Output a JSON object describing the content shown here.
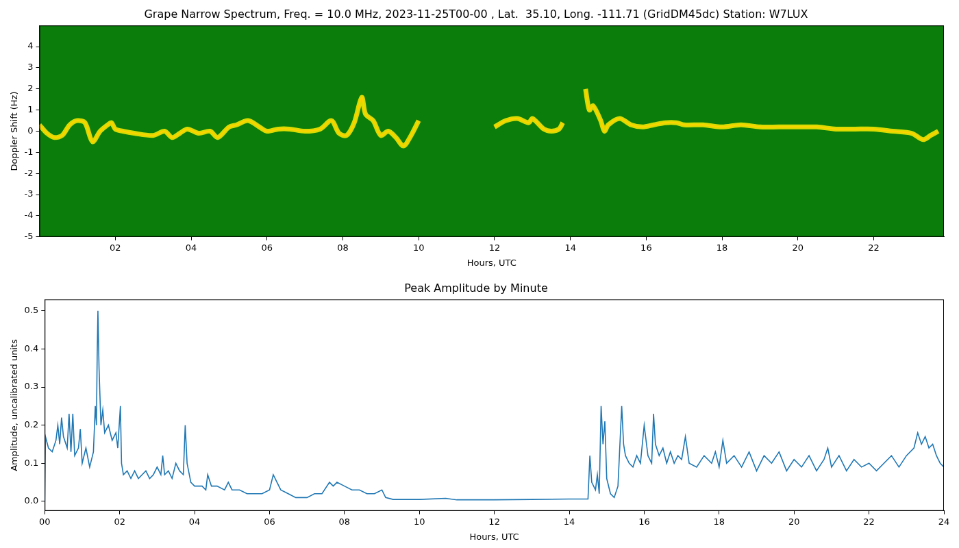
{
  "chart_data": [
    {
      "type": "line",
      "title": "Grape Narrow Spectrum, Freq. = 10.0 MHz, 2023-11-25T00-00 , Lat.  35.10, Long. -111.71 (GridDM45dc) Station: W7LUX",
      "xlabel": "Hours, UTC",
      "ylabel": "Doppler Shift (Hz)",
      "x": [
        0,
        0.2,
        0.4,
        0.6,
        0.8,
        1.0,
        1.2,
        1.4,
        1.6,
        1.8,
        1.9,
        2.0,
        2.2,
        2.5,
        3.0,
        3.3,
        3.5,
        3.7,
        3.9,
        4.2,
        4.5,
        4.7,
        5.0,
        5.2,
        5.5,
        5.8,
        6.0,
        6.3,
        6.6,
        7.0,
        7.4,
        7.7,
        7.9,
        8.1,
        8.3,
        8.5,
        8.6,
        8.8,
        9.0,
        9.2,
        9.4,
        9.6,
        9.8,
        10.0,
        11.0,
        12.0,
        12.3,
        12.6,
        12.9,
        13.0,
        13.3,
        13.5,
        13.7,
        13.8,
        14.1,
        14.4,
        14.5,
        14.6,
        14.8,
        14.9,
        15.0,
        15.3,
        15.6,
        15.9,
        16.2,
        16.5,
        16.8,
        17.0,
        17.5,
        18.0,
        18.5,
        19.0,
        19.5,
        20.0,
        20.5,
        21.0,
        21.5,
        22.0,
        22.5,
        23.0,
        23.3,
        23.5,
        23.7
      ],
      "values": [
        0.3,
        -0.1,
        -0.3,
        -0.2,
        0.3,
        0.5,
        0.4,
        -0.5,
        0.0,
        0.3,
        0.4,
        0.1,
        0.0,
        -0.1,
        -0.2,
        0.0,
        -0.3,
        -0.1,
        0.1,
        -0.1,
        0.0,
        -0.3,
        0.2,
        0.3,
        0.5,
        0.2,
        0.0,
        0.1,
        0.1,
        0.0,
        0.1,
        0.5,
        -0.1,
        -0.2,
        0.4,
        1.6,
        0.8,
        0.5,
        -0.2,
        0.0,
        -0.3,
        -0.7,
        -0.2,
        0.5,
        null,
        0.2,
        0.5,
        0.6,
        0.4,
        0.6,
        0.1,
        0.0,
        0.1,
        0.4,
        null,
        2.0,
        1.0,
        1.2,
        0.5,
        0.0,
        0.3,
        0.6,
        0.3,
        0.2,
        0.3,
        0.4,
        0.4,
        0.3,
        0.3,
        0.2,
        0.3,
        0.2,
        0.2,
        0.2,
        0.2,
        0.1,
        0.1,
        0.1,
        0.0,
        -0.1,
        -0.4,
        -0.2,
        0.0
      ],
      "color": "#ff4500",
      "xlim": [
        0,
        23.85
      ],
      "xticks": [
        {
          "value": 2,
          "label": "02"
        },
        {
          "value": 4,
          "label": "04"
        },
        {
          "value": 6,
          "label": "06"
        },
        {
          "value": 8,
          "label": "08"
        },
        10,
        12,
        14,
        16,
        18,
        20,
        22
      ],
      "ylim": [
        -5,
        5
      ],
      "yticks": [
        -5,
        -4,
        -3,
        -2,
        -1,
        0,
        1,
        2,
        3,
        4
      ],
      "grid": false
    },
    {
      "type": "line",
      "title": "Peak Amplitude by Minute",
      "xlabel": "Hours, UTC",
      "ylabel": "Amplitude, uncalibrated units",
      "x": [
        0,
        0.02,
        0.1,
        0.2,
        0.3,
        0.35,
        0.4,
        0.45,
        0.5,
        0.6,
        0.65,
        0.7,
        0.75,
        0.8,
        0.9,
        0.95,
        1.0,
        1.1,
        1.2,
        1.3,
        1.35,
        1.38,
        1.4,
        1.42,
        1.45,
        1.5,
        1.55,
        1.6,
        1.7,
        1.8,
        1.9,
        1.95,
        2.02,
        2.05,
        2.1,
        2.2,
        2.3,
        2.4,
        2.5,
        2.6,
        2.7,
        2.8,
        2.9,
        3.0,
        3.1,
        3.15,
        3.2,
        3.3,
        3.4,
        3.5,
        3.6,
        3.7,
        3.75,
        3.8,
        3.9,
        4.0,
        4.2,
        4.3,
        4.35,
        4.45,
        4.6,
        4.8,
        4.9,
        5.0,
        5.2,
        5.4,
        5.6,
        5.8,
        6.0,
        6.1,
        6.2,
        6.3,
        6.5,
        6.7,
        7.0,
        7.2,
        7.4,
        7.6,
        7.7,
        7.8,
        8.0,
        8.2,
        8.4,
        8.6,
        8.8,
        9.0,
        9.1,
        9.3,
        9.5,
        10.0,
        10.7,
        11.0,
        12.0,
        13.0,
        14.0,
        14.5,
        14.55,
        14.6,
        14.7,
        14.75,
        14.8,
        14.85,
        14.9,
        14.95,
        15.0,
        15.1,
        15.2,
        15.3,
        15.4,
        15.45,
        15.5,
        15.6,
        15.7,
        15.8,
        15.9,
        16.0,
        16.1,
        16.2,
        16.25,
        16.3,
        16.4,
        16.5,
        16.6,
        16.7,
        16.8,
        16.9,
        17.0,
        17.1,
        17.2,
        17.4,
        17.6,
        17.8,
        17.9,
        18.0,
        18.1,
        18.2,
        18.4,
        18.6,
        18.8,
        19.0,
        19.2,
        19.4,
        19.6,
        19.8,
        20.0,
        20.2,
        20.4,
        20.6,
        20.8,
        20.9,
        21.0,
        21.2,
        21.4,
        21.6,
        21.8,
        22.0,
        22.2,
        22.4,
        22.6,
        22.8,
        23.0,
        23.2,
        23.3,
        23.4,
        23.5,
        23.6,
        23.7,
        23.8,
        23.9,
        24.0
      ],
      "values": [
        0.0,
        0.17,
        0.14,
        0.13,
        0.16,
        0.2,
        0.15,
        0.22,
        0.17,
        0.14,
        0.23,
        0.13,
        0.23,
        0.12,
        0.14,
        0.19,
        0.1,
        0.14,
        0.09,
        0.13,
        0.25,
        0.2,
        0.38,
        0.5,
        0.35,
        0.2,
        0.24,
        0.18,
        0.2,
        0.16,
        0.18,
        0.14,
        0.25,
        0.1,
        0.07,
        0.08,
        0.06,
        0.08,
        0.06,
        0.07,
        0.08,
        0.06,
        0.07,
        0.09,
        0.07,
        0.12,
        0.07,
        0.08,
        0.06,
        0.1,
        0.08,
        0.07,
        0.2,
        0.1,
        0.05,
        0.04,
        0.04,
        0.03,
        0.07,
        0.04,
        0.04,
        0.03,
        0.05,
        0.03,
        0.03,
        0.02,
        0.02,
        0.02,
        0.03,
        0.07,
        0.05,
        0.03,
        0.02,
        0.01,
        0.01,
        0.02,
        0.02,
        0.05,
        0.04,
        0.05,
        0.04,
        0.03,
        0.03,
        0.02,
        0.02,
        0.03,
        0.01,
        0.005,
        0.005,
        0.005,
        0.008,
        0.004,
        0.004,
        0.005,
        0.006,
        0.006,
        0.12,
        0.05,
        0.03,
        0.07,
        0.02,
        0.25,
        0.15,
        0.21,
        0.06,
        0.02,
        0.01,
        0.04,
        0.25,
        0.15,
        0.12,
        0.1,
        0.09,
        0.12,
        0.1,
        0.2,
        0.12,
        0.1,
        0.23,
        0.15,
        0.12,
        0.14,
        0.1,
        0.13,
        0.1,
        0.12,
        0.11,
        0.17,
        0.1,
        0.09,
        0.12,
        0.1,
        0.13,
        0.09,
        0.16,
        0.1,
        0.12,
        0.09,
        0.13,
        0.08,
        0.12,
        0.1,
        0.13,
        0.08,
        0.11,
        0.09,
        0.12,
        0.08,
        0.11,
        0.14,
        0.09,
        0.12,
        0.08,
        0.11,
        0.09,
        0.1,
        0.08,
        0.1,
        0.12,
        0.09,
        0.12,
        0.14,
        0.18,
        0.15,
        0.17,
        0.14,
        0.15,
        0.12,
        0.1,
        0.09
      ],
      "color": "#1f77b4",
      "xlim": [
        0,
        24
      ],
      "xticks": [
        {
          "value": 0,
          "label": "00"
        },
        {
          "value": 2,
          "label": "02"
        },
        {
          "value": 4,
          "label": "04"
        },
        {
          "value": 6,
          "label": "06"
        },
        {
          "value": 8,
          "label": "08"
        },
        10,
        12,
        14,
        16,
        18,
        20,
        22,
        24
      ],
      "ylim": [
        -0.025,
        0.53
      ],
      "yticks": [
        {
          "value": 0,
          "label": "0.0"
        },
        0.1,
        0.2,
        0.3,
        0.4,
        0.5
      ],
      "grid": false
    }
  ]
}
